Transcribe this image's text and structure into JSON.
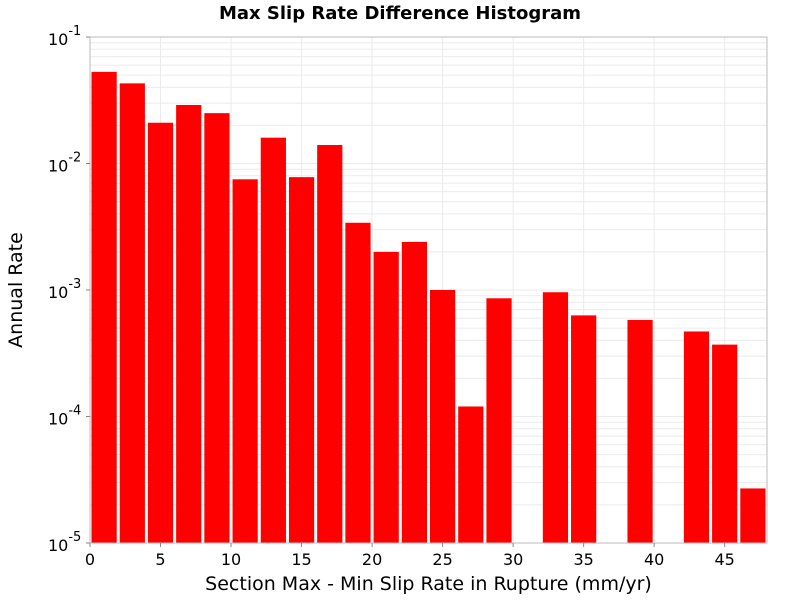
{
  "chart_data": {
    "type": "bar",
    "title": "Max Slip Rate Difference Histogram",
    "xlabel": "Section Max - Min Slip Rate in Rupture (mm/yr)",
    "ylabel": "Annual Rate",
    "y_scale": "log",
    "xlim": [
      0,
      48
    ],
    "ylim": [
      1e-05,
      0.1
    ],
    "x_ticks": [
      0,
      5,
      10,
      15,
      20,
      25,
      30,
      35,
      40,
      45
    ],
    "y_ticks": [
      {
        "value": 1e-05,
        "base": "10",
        "exp": "-5"
      },
      {
        "value": 0.0001,
        "base": "10",
        "exp": "-4"
      },
      {
        "value": 0.001,
        "base": "10",
        "exp": "-3"
      },
      {
        "value": 0.01,
        "base": "10",
        "exp": "-2"
      },
      {
        "value": 0.1,
        "base": "10",
        "exp": "-1"
      }
    ],
    "bin_width": 2,
    "bins": [
      {
        "x0": 0,
        "x1": 2,
        "value": 0.053
      },
      {
        "x0": 2,
        "x1": 4,
        "value": 0.043
      },
      {
        "x0": 4,
        "x1": 6,
        "value": 0.021
      },
      {
        "x0": 6,
        "x1": 8,
        "value": 0.029
      },
      {
        "x0": 8,
        "x1": 10,
        "value": 0.025
      },
      {
        "x0": 10,
        "x1": 12,
        "value": 0.0075
      },
      {
        "x0": 12,
        "x1": 14,
        "value": 0.016
      },
      {
        "x0": 14,
        "x1": 16,
        "value": 0.0078
      },
      {
        "x0": 16,
        "x1": 18,
        "value": 0.014
      },
      {
        "x0": 18,
        "x1": 20,
        "value": 0.0034
      },
      {
        "x0": 20,
        "x1": 22,
        "value": 0.002
      },
      {
        "x0": 22,
        "x1": 24,
        "value": 0.0024
      },
      {
        "x0": 24,
        "x1": 26,
        "value": 0.001
      },
      {
        "x0": 26,
        "x1": 28,
        "value": 0.00012
      },
      {
        "x0": 28,
        "x1": 30,
        "value": 0.00086
      },
      {
        "x0": 32,
        "x1": 34,
        "value": 0.00096
      },
      {
        "x0": 34,
        "x1": 36,
        "value": 0.00063
      },
      {
        "x0": 38,
        "x1": 40,
        "value": 0.00058
      },
      {
        "x0": 42,
        "x1": 44,
        "value": 0.00047
      },
      {
        "x0": 44,
        "x1": 46,
        "value": 0.00037
      },
      {
        "x0": 46,
        "x1": 48,
        "value": 2.7e-05
      }
    ],
    "bar_color": "#ff0000",
    "grid": true,
    "grid_color": "#ebebeb",
    "background": "#ffffff"
  }
}
